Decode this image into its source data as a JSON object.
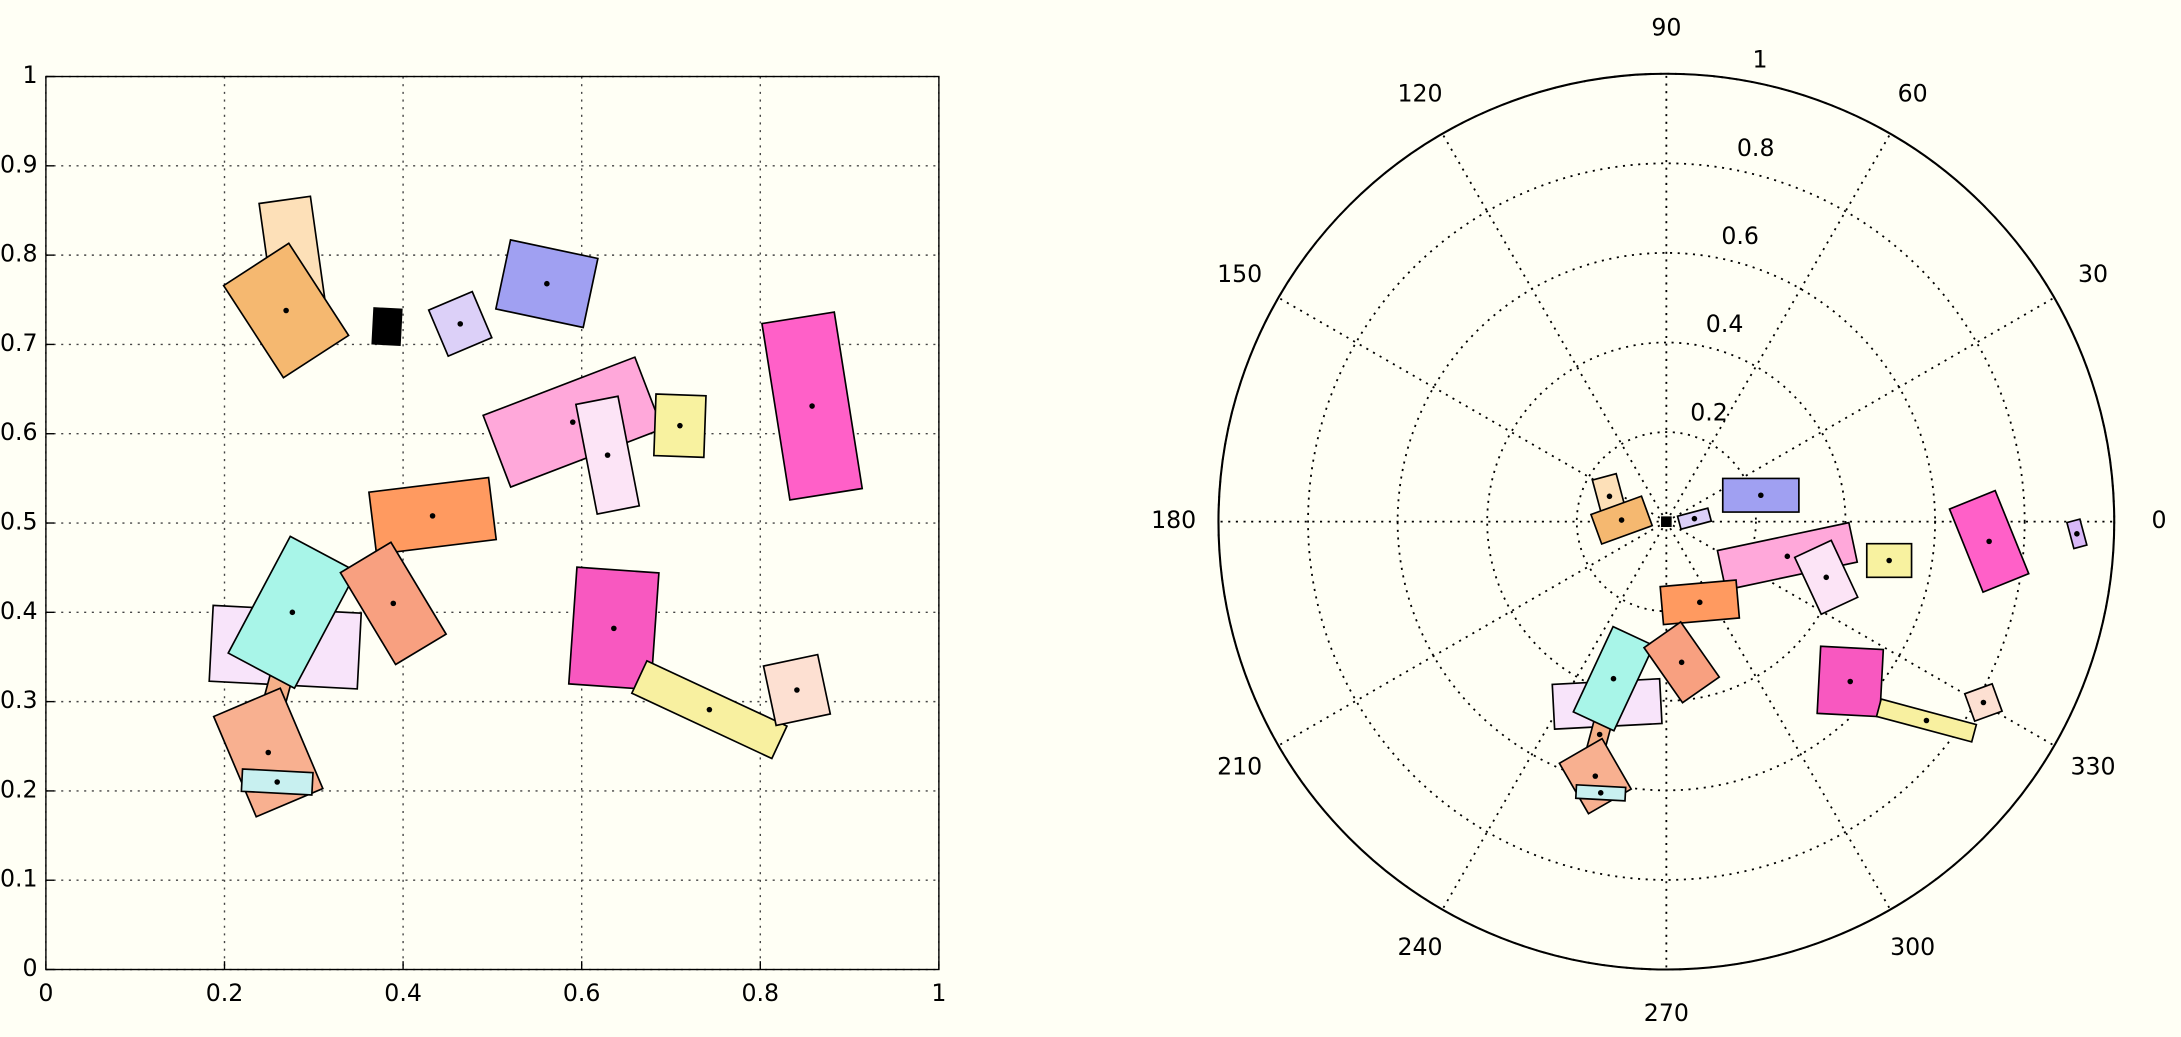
{
  "chart_data": [
    {
      "type": "rect",
      "xlim": [
        0,
        1
      ],
      "ylim": [
        0,
        1
      ],
      "xticks": [
        0,
        0.2,
        0.4,
        0.6,
        0.8,
        1
      ],
      "yticks": [
        0,
        0.1,
        0.2,
        0.3,
        0.4,
        0.5,
        0.6,
        0.7,
        0.8,
        0.9,
        1
      ],
      "grid": true,
      "rects": [
        {
          "x": 0.277,
          "y": 0.794,
          "w": 0.058,
          "h": 0.137,
          "angle": 8,
          "color": "#fde0b8"
        },
        {
          "x": 0.269,
          "y": 0.738,
          "w": 0.087,
          "h": 0.123,
          "angle": 33,
          "color": "#f5b870"
        },
        {
          "x": 0.382,
          "y": 0.72,
          "w": 0.031,
          "h": 0.04,
          "angle": -3,
          "color": "#000000"
        },
        {
          "x": 0.464,
          "y": 0.723,
          "w": 0.053,
          "h": 0.056,
          "angle": 23,
          "color": "#dcd0f8"
        },
        {
          "x": 0.561,
          "y": 0.768,
          "w": 0.1,
          "h": 0.079,
          "angle": -12,
          "color": "#a0a0f2"
        },
        {
          "x": 0.59,
          "y": 0.613,
          "w": 0.182,
          "h": 0.086,
          "angle": 21,
          "color": "#ffa8da"
        },
        {
          "x": 0.629,
          "y": 0.576,
          "w": 0.048,
          "h": 0.125,
          "angle": 11,
          "color": "#fce4f6"
        },
        {
          "x": 0.71,
          "y": 0.609,
          "w": 0.056,
          "h": 0.069,
          "angle": -2,
          "color": "#f8f2a0"
        },
        {
          "x": 0.858,
          "y": 0.631,
          "w": 0.082,
          "h": 0.2,
          "angle": 9,
          "color": "#ff60c8"
        },
        {
          "x": 0.433,
          "y": 0.508,
          "w": 0.135,
          "h": 0.07,
          "angle": 7,
          "color": "#ff9a60"
        },
        {
          "x": 0.268,
          "y": 0.361,
          "w": 0.166,
          "h": 0.085,
          "angle": -3,
          "color": "#f8e4fa"
        },
        {
          "x": 0.259,
          "y": 0.311,
          "w": 0.025,
          "h": 0.08,
          "angle": -15,
          "color": "#f5b088"
        },
        {
          "x": 0.276,
          "y": 0.4,
          "w": 0.084,
          "h": 0.148,
          "angle": -28,
          "color": "#a8f5e8"
        },
        {
          "x": 0.389,
          "y": 0.41,
          "w": 0.066,
          "h": 0.12,
          "angle": 31,
          "color": "#f8a080"
        },
        {
          "x": 0.249,
          "y": 0.243,
          "w": 0.081,
          "h": 0.122,
          "angle": 23,
          "color": "#f8b090"
        },
        {
          "x": 0.259,
          "y": 0.21,
          "w": 0.079,
          "h": 0.025,
          "angle": -3,
          "color": "#c8f0f0"
        },
        {
          "x": 0.636,
          "y": 0.382,
          "w": 0.092,
          "h": 0.131,
          "angle": -4,
          "color": "#f858c0"
        },
        {
          "x": 0.743,
          "y": 0.291,
          "w": 0.173,
          "h": 0.04,
          "angle": -25,
          "color": "#f8f0a0"
        },
        {
          "x": 0.841,
          "y": 0.313,
          "w": 0.062,
          "h": 0.068,
          "angle": 12,
          "color": "#fde0d2"
        }
      ]
    },
    {
      "type": "polar",
      "rlim": [
        0,
        1
      ],
      "rticks": [
        0.2,
        0.4,
        0.6,
        0.8,
        1
      ],
      "thetaticks": [
        0,
        30,
        60,
        90,
        120,
        150,
        180,
        210,
        240,
        270,
        300,
        330
      ],
      "grid": true,
      "rects": [
        {
          "theta": 156,
          "r": 0.139,
          "w": 0.055,
          "h": 0.09,
          "angle": 15,
          "color": "#fde0b8"
        },
        {
          "theta": 178,
          "r": 0.1,
          "w": 0.12,
          "h": 0.07,
          "angle": 20,
          "color": "#f5b870"
        },
        {
          "theta": 0,
          "r": 0,
          "w": 0.02,
          "h": 0.02,
          "angle": 0,
          "color": "#000000"
        },
        {
          "theta": 6,
          "r": 0.063,
          "w": 0.07,
          "h": 0.03,
          "angle": 15,
          "color": "#dcd0f8"
        },
        {
          "theta": 15.6,
          "r": 0.219,
          "w": 0.17,
          "h": 0.075,
          "angle": 0,
          "color": "#a0a0f2"
        },
        {
          "theta": -16,
          "r": 0.281,
          "w": 0.3,
          "h": 0.09,
          "angle": 12,
          "color": "#ffa8da"
        },
        {
          "theta": -19.2,
          "r": 0.378,
          "w": 0.09,
          "h": 0.14,
          "angle": 25,
          "color": "#fce4f6"
        },
        {
          "theta": -9.9,
          "r": 0.505,
          "w": 0.1,
          "h": 0.075,
          "angle": 0,
          "color": "#f8f2a0"
        },
        {
          "theta": -3.5,
          "r": 0.722,
          "w": 0.11,
          "h": 0.2,
          "angle": 22,
          "color": "#ff60c8"
        },
        {
          "theta": -1.7,
          "r": 0.917,
          "w": 0.03,
          "h": 0.06,
          "angle": 15,
          "color": "#d8b8f8"
        },
        {
          "theta": -67.5,
          "r": 0.195,
          "w": 0.17,
          "h": 0.085,
          "angle": 5,
          "color": "#ff9a60"
        },
        {
          "theta": -108,
          "r": 0.428,
          "w": 0.24,
          "h": 0.1,
          "angle": 3,
          "color": "#f8e4fa"
        },
        {
          "theta": -107.4,
          "r": 0.498,
          "w": 0.04,
          "h": 0.08,
          "angle": -15,
          "color": "#f5b088"
        },
        {
          "theta": -108.6,
          "r": 0.37,
          "w": 0.1,
          "h": 0.21,
          "angle": -25,
          "color": "#a8f5e8"
        },
        {
          "theta": -83.8,
          "r": 0.316,
          "w": 0.1,
          "h": 0.15,
          "angle": 35,
          "color": "#f8a080"
        },
        {
          "theta": -105.6,
          "r": 0.59,
          "w": 0.11,
          "h": 0.13,
          "angle": 30,
          "color": "#f8b090"
        },
        {
          "theta": -103.6,
          "r": 0.623,
          "w": 0.11,
          "h": 0.03,
          "angle": -3,
          "color": "#c8f0f0"
        },
        {
          "theta": -41,
          "r": 0.544,
          "w": 0.14,
          "h": 0.15,
          "angle": -3,
          "color": "#f858c0"
        },
        {
          "theta": -37.4,
          "r": 0.731,
          "w": 0.22,
          "h": 0.04,
          "angle": -15,
          "color": "#f8f0a0"
        },
        {
          "theta": -29.7,
          "r": 0.815,
          "w": 0.065,
          "h": 0.065,
          "angle": 20,
          "color": "#fde0d2"
        }
      ]
    }
  ]
}
